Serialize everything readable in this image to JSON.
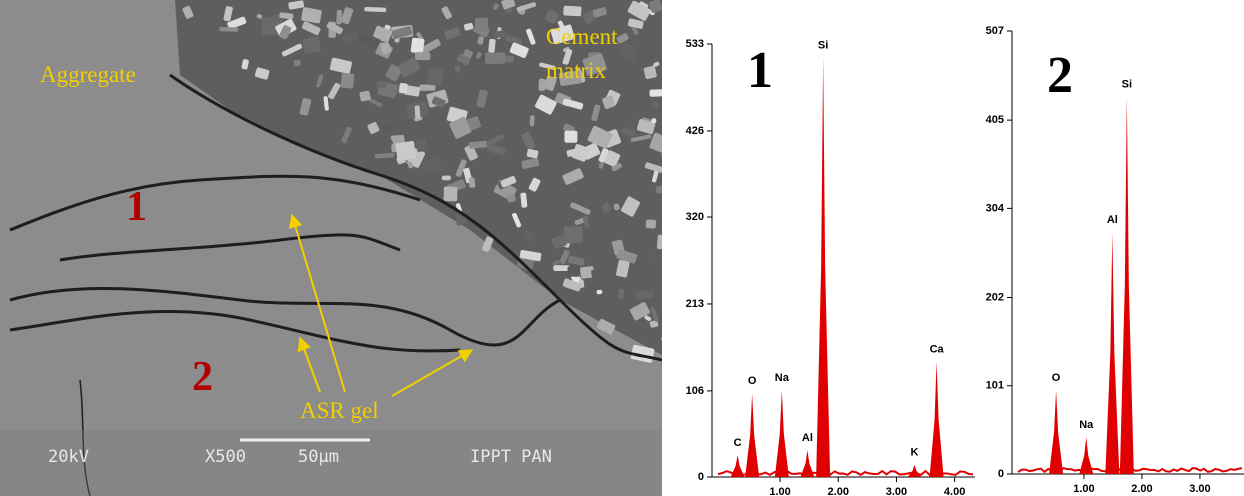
{
  "micrograph": {
    "labels": {
      "aggregate": "Aggregate",
      "cement_matrix": [
        "Cement",
        "matrix"
      ],
      "site_1": "1",
      "site_2": "2",
      "asr_gel": "ASR gel"
    },
    "info_bar": {
      "voltage": "20kV",
      "magnification": "X500",
      "scale": "50µm",
      "institute": "IPPT PAN"
    }
  },
  "chart_data": [
    {
      "type": "spectrum",
      "panel_label": "1",
      "color": "#e00000",
      "peaks": [
        {
          "label": "C",
          "x": 0.27,
          "value": 27
        },
        {
          "label": "O",
          "x": 0.52,
          "value": 103
        },
        {
          "label": "Na",
          "x": 1.03,
          "value": 107
        },
        {
          "label": "Al",
          "x": 1.47,
          "value": 33
        },
        {
          "label": "Si",
          "x": 1.74,
          "value": 516
        },
        {
          "label": "K",
          "x": 3.31,
          "value": 15
        },
        {
          "label": "Ca",
          "x": 3.69,
          "value": 142
        }
      ],
      "xlim": [
        -0.17,
        4.35
      ],
      "xticks": [
        {
          "value": 1,
          "label": "1.00"
        },
        {
          "value": 2,
          "label": "2.00"
        },
        {
          "value": 3,
          "label": "3.00"
        },
        {
          "value": 4,
          "label": "4.00"
        }
      ],
      "ylim": [
        0,
        533
      ],
      "yticks": [
        0,
        106,
        213,
        320,
        426,
        533
      ]
    },
    {
      "type": "spectrum",
      "panel_label": "2",
      "color": "#e00000",
      "peaks": [
        {
          "label": "O",
          "x": 0.52,
          "value": 96
        },
        {
          "label": "Na",
          "x": 1.04,
          "value": 42
        },
        {
          "label": "Al",
          "x": 1.49,
          "value": 277
        },
        {
          "label": "Si",
          "x": 1.74,
          "value": 432
        }
      ],
      "xlim": [
        -0.24,
        3.76
      ],
      "xticks": [
        {
          "value": 1,
          "label": "1.00"
        },
        {
          "value": 2,
          "label": "2.00"
        },
        {
          "value": 3,
          "label": "3.00"
        }
      ],
      "ylim": [
        0,
        507
      ],
      "yticks": [
        0,
        101,
        202,
        304,
        405,
        507
      ]
    }
  ]
}
